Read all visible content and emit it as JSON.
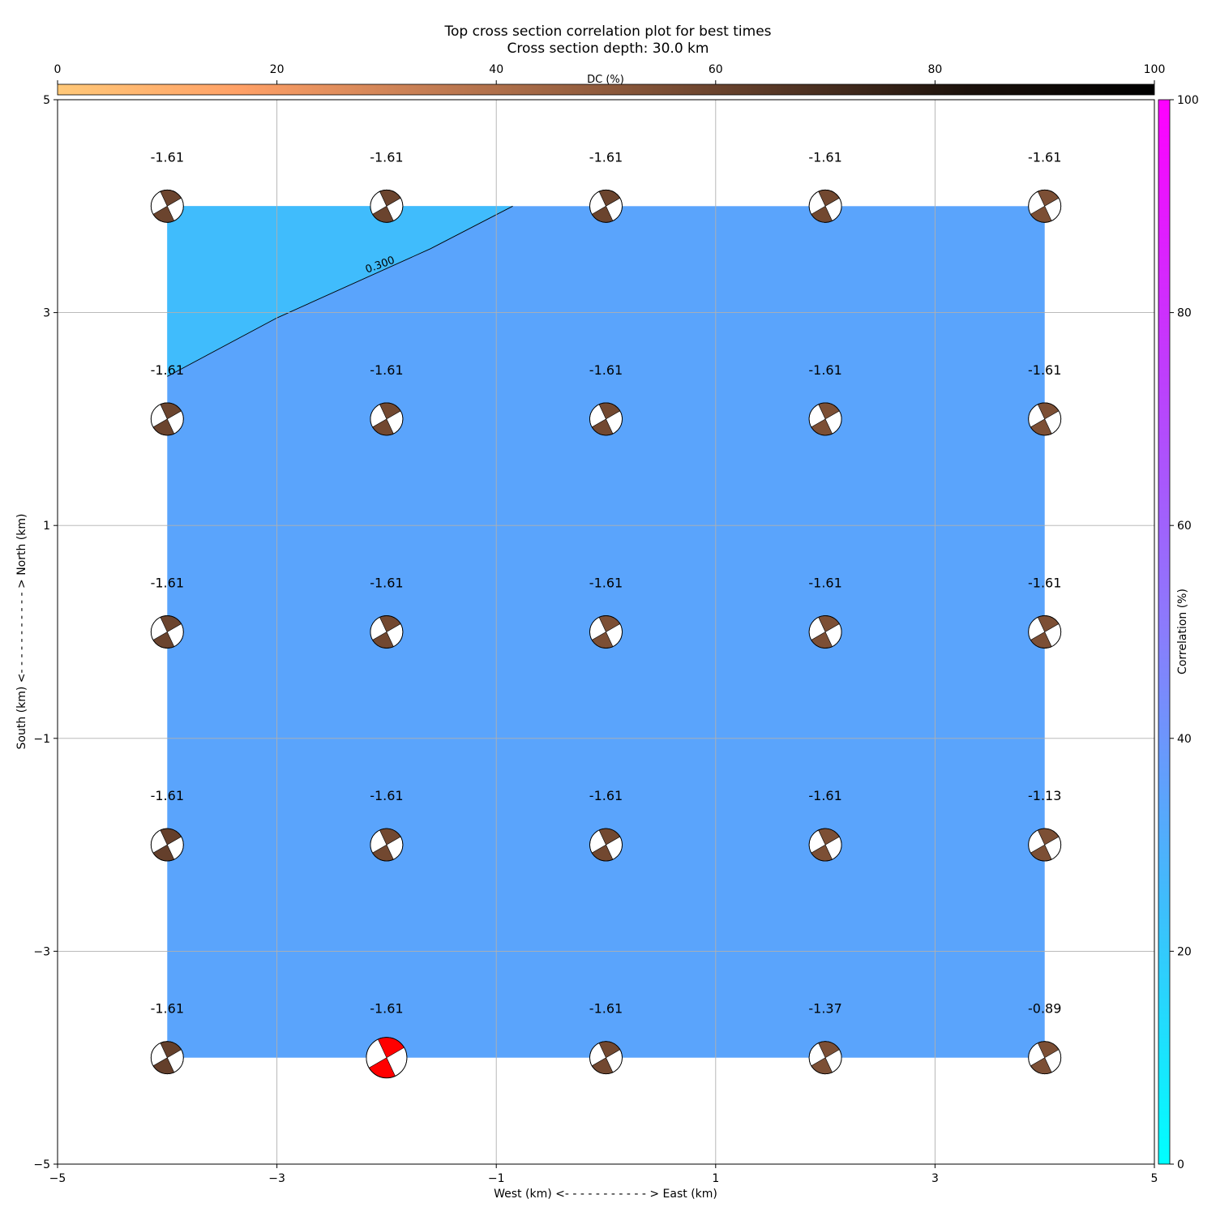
{
  "chart_data": {
    "type": "heatmap",
    "title": "Top cross section correlation plot for best times",
    "subtitle": "Cross section depth: 30.0 km",
    "xlabel": "West (km) <- - - - - - - - - - - > East (km)",
    "ylabel": "South (km) <- - - - - - - - - - - > North (km)",
    "xlim": [
      -5,
      5
    ],
    "ylim": [
      -5,
      5
    ],
    "xticks": [
      -5,
      -3,
      -1,
      1,
      3,
      5
    ],
    "yticks": [
      -5,
      -3,
      -1,
      1,
      3,
      5
    ],
    "xtick_labels": [
      "−5",
      "−3",
      "−1",
      "1",
      "3",
      "5"
    ],
    "ytick_labels": [
      "−5",
      "−3",
      "−1",
      "1",
      "3",
      "5"
    ],
    "grid": true,
    "x": [
      -4,
      -2,
      0,
      2,
      4
    ],
    "y": [
      4,
      2,
      0,
      -2,
      -4
    ],
    "correlation_region_colors": {
      "low": "#40bcfc",
      "high": "#5aa4fc"
    },
    "contour": {
      "level_label": "0.300",
      "color": "#000000",
      "points": [
        [
          -4.0,
          2.4
        ],
        [
          -3.0,
          2.95
        ],
        [
          -1.6,
          3.6
        ],
        [
          -0.85,
          4.0
        ]
      ]
    },
    "grid_points": [
      {
        "x": -4,
        "y": 4,
        "value": "-1.61",
        "dc": 60,
        "best": false
      },
      {
        "x": -2,
        "y": 4,
        "value": "-1.61",
        "dc": 60,
        "best": false
      },
      {
        "x": 0,
        "y": 4,
        "value": "-1.61",
        "dc": 60,
        "best": false
      },
      {
        "x": 2,
        "y": 4,
        "value": "-1.61",
        "dc": 58,
        "best": false
      },
      {
        "x": 4,
        "y": 4,
        "value": "-1.61",
        "dc": 55,
        "best": false
      },
      {
        "x": -4,
        "y": 2,
        "value": "-1.61",
        "dc": 60,
        "best": false
      },
      {
        "x": -2,
        "y": 2,
        "value": "-1.61",
        "dc": 58,
        "best": false
      },
      {
        "x": 0,
        "y": 2,
        "value": "-1.61",
        "dc": 58,
        "best": false
      },
      {
        "x": 2,
        "y": 2,
        "value": "-1.61",
        "dc": 55,
        "best": false
      },
      {
        "x": 4,
        "y": 2,
        "value": "-1.61",
        "dc": 55,
        "best": false
      },
      {
        "x": -4,
        "y": 0,
        "value": "-1.61",
        "dc": 60,
        "best": false
      },
      {
        "x": -2,
        "y": 0,
        "value": "-1.61",
        "dc": 58,
        "best": false
      },
      {
        "x": 0,
        "y": 0,
        "value": "-1.61",
        "dc": 55,
        "best": false
      },
      {
        "x": 2,
        "y": 0,
        "value": "-1.61",
        "dc": 55,
        "best": false
      },
      {
        "x": 4,
        "y": 0,
        "value": "-1.61",
        "dc": 55,
        "best": false
      },
      {
        "x": -4,
        "y": -2,
        "value": "-1.61",
        "dc": 62,
        "best": false
      },
      {
        "x": -2,
        "y": -2,
        "value": "-1.61",
        "dc": 58,
        "best": false
      },
      {
        "x": 0,
        "y": -2,
        "value": "-1.61",
        "dc": 58,
        "best": false
      },
      {
        "x": 2,
        "y": -2,
        "value": "-1.61",
        "dc": 55,
        "best": false
      },
      {
        "x": 4,
        "y": -2,
        "value": "-1.13",
        "dc": 55,
        "best": false
      },
      {
        "x": -4,
        "y": -4,
        "value": "-1.61",
        "dc": 62,
        "best": false
      },
      {
        "x": -2,
        "y": -4,
        "value": "-1.61",
        "dc": 0,
        "best": true
      },
      {
        "x": 0,
        "y": -4,
        "value": "-1.61",
        "dc": 58,
        "best": false
      },
      {
        "x": 2,
        "y": -4,
        "value": "-1.37",
        "dc": 55,
        "best": false
      },
      {
        "x": 4,
        "y": -4,
        "value": "-0.89",
        "dc": 55,
        "best": false
      }
    ],
    "best_color": "#ff0000",
    "dc_colorbar": {
      "label": "DC (%)",
      "range": [
        0,
        100
      ],
      "ticks": [
        0,
        20,
        40,
        60,
        80,
        100
      ],
      "colors": [
        "#ffc878",
        "#ffa066",
        "#c67e54",
        "#8e5a3c",
        "#533524",
        "#1b110b",
        "#000000"
      ]
    },
    "correlation_colorbar": {
      "label": "Correlation (%)",
      "range": [
        0,
        100
      ],
      "ticks": [
        0,
        20,
        40,
        60,
        80,
        100
      ],
      "colors": [
        "#00ffff",
        "#40bcfc",
        "#8a7cfc",
        "#c03cfc",
        "#ff00ff"
      ]
    }
  }
}
